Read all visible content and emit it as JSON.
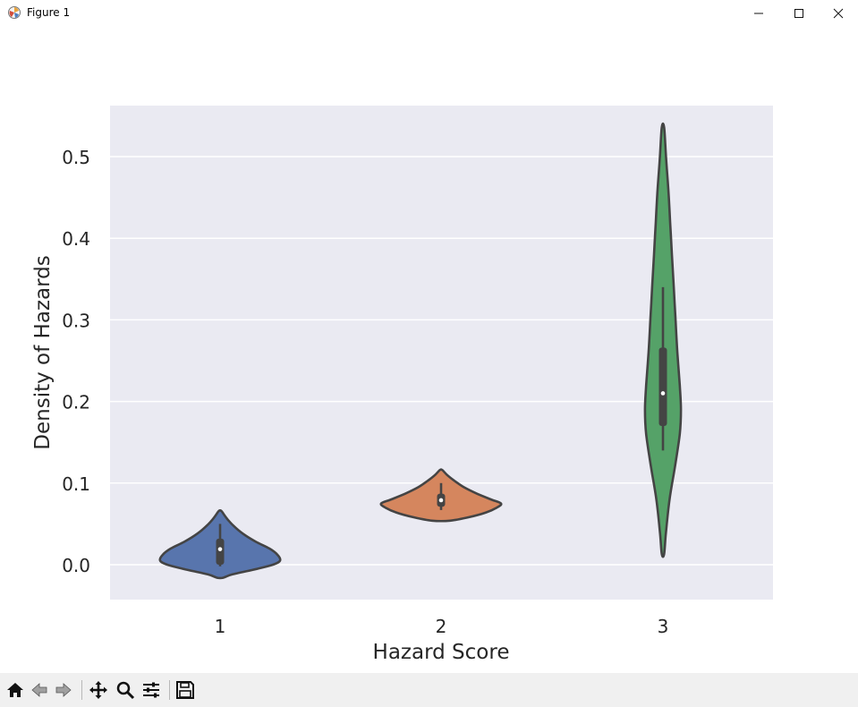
{
  "window": {
    "title": "Figure 1",
    "minimize_icon": "minimize-icon",
    "maximize_icon": "maximize-icon",
    "close_icon": "close-icon"
  },
  "toolbar": {
    "buttons": [
      "home-icon",
      "back-arrow-icon",
      "forward-arrow-icon",
      "pan-move-icon",
      "zoom-magnifier-icon",
      "configure-subplots-icon",
      "save-floppy-icon"
    ]
  },
  "chart_data": {
    "type": "violin",
    "xlabel": "Hazard Score",
    "ylabel": "Density of Hazards",
    "categories": [
      "1",
      "2",
      "3"
    ],
    "ylim": [
      -0.042,
      0.56
    ],
    "yticks": [
      0.0,
      0.1,
      0.2,
      0.3,
      0.4,
      0.5
    ],
    "ytick_labels": [
      "0.0",
      "0.1",
      "0.2",
      "0.3",
      "0.4",
      "0.5"
    ],
    "grid": true,
    "background": "#eaeaf2",
    "violins": [
      {
        "category": "1",
        "color": "#5875ad",
        "range": [
          -0.016,
          0.066
        ],
        "profile": [
          [
            -0.016,
            0.05
          ],
          [
            -0.012,
            0.2
          ],
          [
            -0.005,
            0.62
          ],
          [
            0.0,
            0.88
          ],
          [
            0.005,
            1.0
          ],
          [
            0.012,
            0.96
          ],
          [
            0.02,
            0.82
          ],
          [
            0.028,
            0.6
          ],
          [
            0.038,
            0.38
          ],
          [
            0.048,
            0.22
          ],
          [
            0.056,
            0.12
          ],
          [
            0.062,
            0.06
          ],
          [
            0.066,
            0.02
          ]
        ],
        "box": {
          "q1": 0.0,
          "q3": 0.032,
          "whisker_low": -0.002,
          "whisker_high": 0.05,
          "median": 0.019
        }
      },
      {
        "category": "2",
        "color": "#d5865e",
        "range": [
          0.054,
          0.116
        ],
        "profile": [
          [
            0.054,
            0.15
          ],
          [
            0.058,
            0.45
          ],
          [
            0.064,
            0.75
          ],
          [
            0.07,
            0.93
          ],
          [
            0.075,
            1.0
          ],
          [
            0.08,
            0.83
          ],
          [
            0.087,
            0.6
          ],
          [
            0.095,
            0.38
          ],
          [
            0.103,
            0.22
          ],
          [
            0.11,
            0.1
          ],
          [
            0.116,
            0.02
          ]
        ],
        "box": {
          "q1": 0.071,
          "q3": 0.087,
          "whisker_low": 0.067,
          "whisker_high": 0.1,
          "median": 0.079
        }
      },
      {
        "category": "3",
        "color": "#55a268",
        "range": [
          0.013,
          0.536
        ],
        "profile": [
          [
            0.013,
            0.02
          ],
          [
            0.04,
            0.05
          ],
          [
            0.08,
            0.11
          ],
          [
            0.12,
            0.2
          ],
          [
            0.16,
            0.28
          ],
          [
            0.19,
            0.3
          ],
          [
            0.22,
            0.28
          ],
          [
            0.26,
            0.24
          ],
          [
            0.3,
            0.21
          ],
          [
            0.34,
            0.18
          ],
          [
            0.38,
            0.15
          ],
          [
            0.42,
            0.12
          ],
          [
            0.46,
            0.09
          ],
          [
            0.5,
            0.05
          ],
          [
            0.536,
            0.02
          ]
        ],
        "box": {
          "q1": 0.17,
          "q3": 0.266,
          "whisker_low": 0.14,
          "whisker_high": 0.34,
          "median": 0.21
        }
      }
    ]
  }
}
